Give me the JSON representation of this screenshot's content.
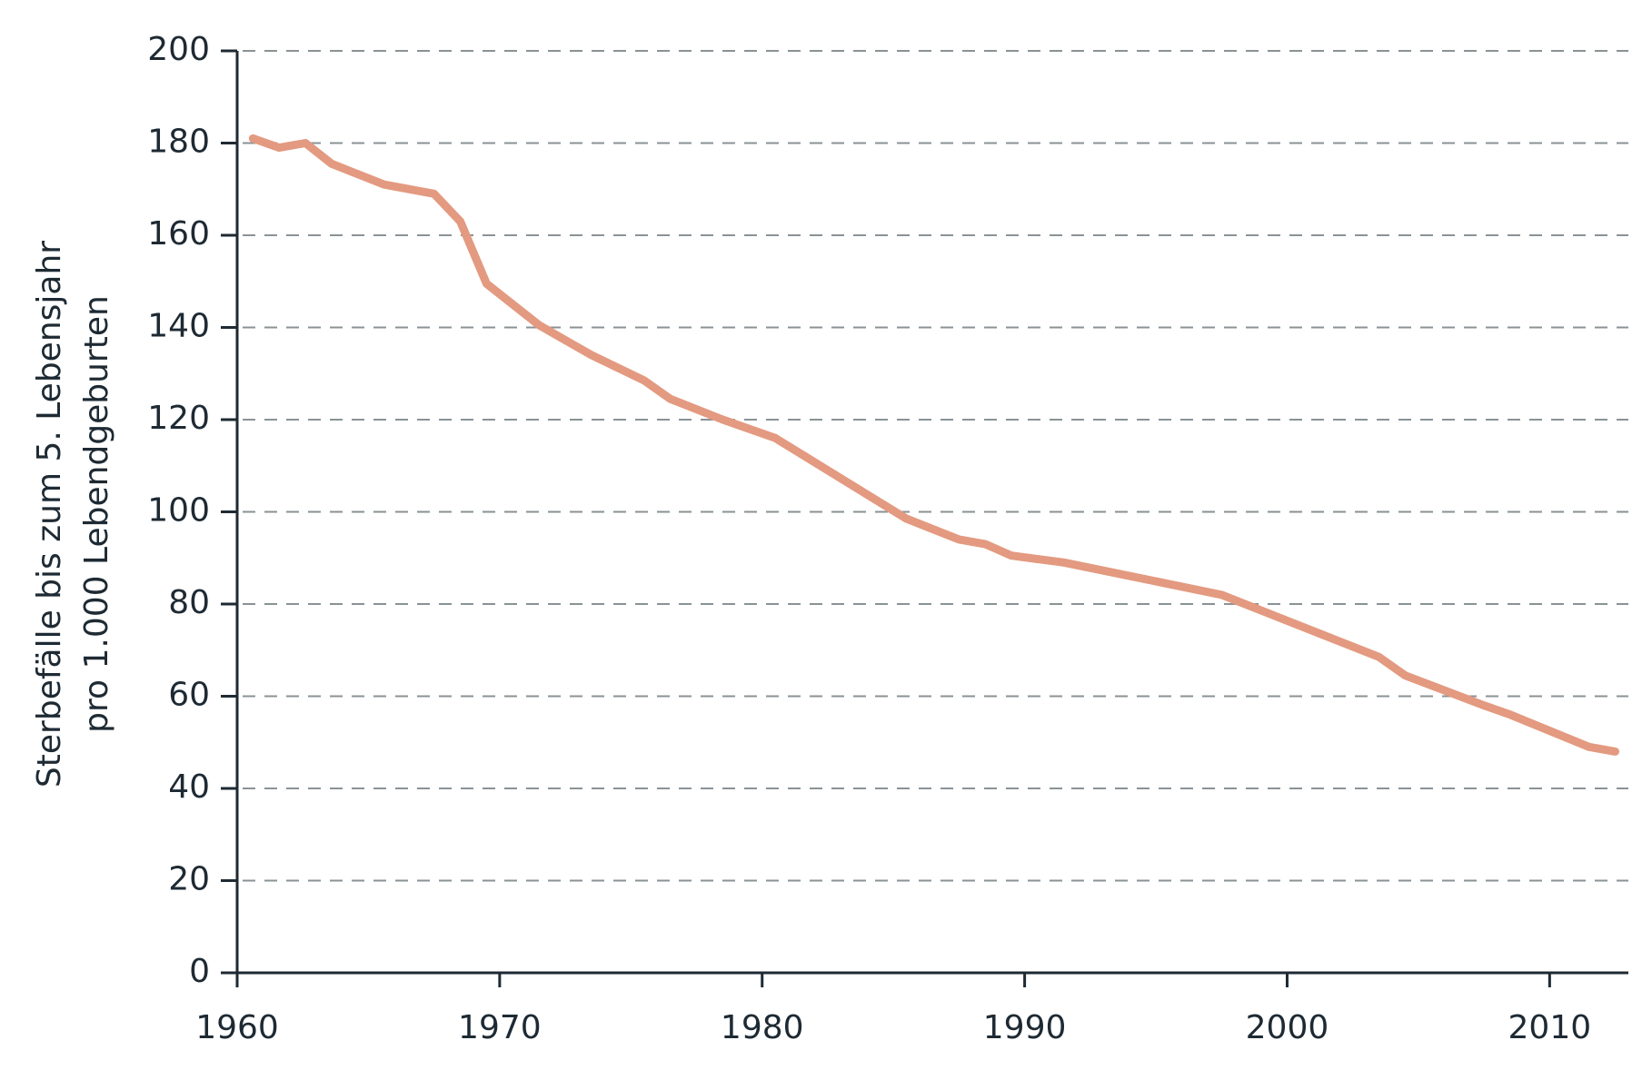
{
  "chart_data": {
    "type": "line",
    "ylabel": [
      "Sterbefälle bis zum 5. Lebensjahr",
      "pro 1.000 Lebendgeburten"
    ],
    "x": [
      1960.6,
      1961.6,
      1962.6,
      1963.6,
      1965.6,
      1967.5,
      1968.5,
      1969.5,
      1971.5,
      1973.5,
      1975.5,
      1976.5,
      1978.5,
      1980.5,
      1982.5,
      1985.5,
      1987.5,
      1988.5,
      1989.5,
      1991.5,
      1997.5,
      2003.5,
      2004.5,
      2007.5,
      2008.5,
      2011.5,
      2012.5
    ],
    "series": [
      {
        "name": "Sterbefälle",
        "color": "#e39a80",
        "values": [
          181,
          179,
          180,
          175.5,
          171,
          169,
          163,
          149.5,
          140.5,
          134,
          128.5,
          124.5,
          120,
          116,
          109,
          98.5,
          94,
          93,
          90.5,
          89,
          82,
          68.5,
          64.5,
          58,
          56,
          49,
          48
        ]
      }
    ],
    "xlim": [
      1960,
      2013
    ],
    "xticks": [
      1960,
      1970,
      1980,
      1990,
      2000,
      2010
    ],
    "ylim": [
      0,
      200
    ],
    "yticks": [
      0,
      20,
      40,
      60,
      80,
      100,
      120,
      140,
      160,
      180,
      200
    ],
    "grid": true
  }
}
